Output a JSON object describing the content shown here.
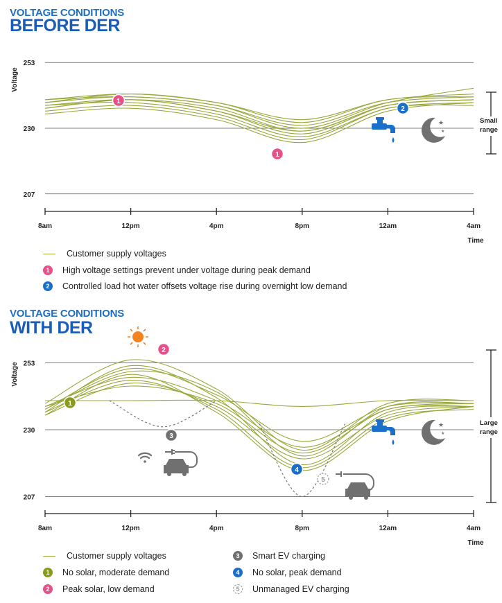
{
  "colors": {
    "curves": "#9aa83a",
    "title": "#1a5cb8",
    "pink": "#e8508a",
    "blue": "#1a6fc8",
    "olive": "#8a9a1c",
    "gray": "#707070",
    "sun": "#f58220"
  },
  "chart1": {
    "title_line1": "VOLTAGE CONDITIONS",
    "title_line2": "BEFORE DER",
    "ylabel": "Voltage",
    "xlabel": "Time",
    "range_label_line1": "Small",
    "range_label_line2": "range",
    "marker_1": "1",
    "marker_2": "2",
    "icons": [
      "tap-icon",
      "moon-stars-icon"
    ]
  },
  "chart2": {
    "title_line1": "VOLTAGE CONDITIONS",
    "title_line2": "WITH DER",
    "ylabel": "Voltage",
    "xlabel": "Time",
    "range_label_line1": "Large",
    "range_label_line2": "range",
    "marker_1": "1",
    "marker_2": "2",
    "marker_3": "3",
    "marker_4": "4",
    "marker_5": "5",
    "icons": [
      "sun-icon",
      "wifi-icon",
      "ev-plug-icon",
      "car-icon",
      "tap-icon",
      "moon-stars-icon"
    ]
  },
  "legend1": {
    "line": "Customer supply voltages",
    "item1": "High voltage settings prevent under voltage during peak demand",
    "item2": "Controlled load hot water offsets voltage rise during overnight low demand"
  },
  "legend2": {
    "line": "Customer supply voltages",
    "item1": "No solar, moderate demand",
    "item2": "Peak solar, low demand",
    "item3": "Smart EV charging",
    "item4": "No solar, peak demand",
    "item5": "Unmanaged EV charging"
  },
  "chart_data": [
    {
      "type": "line",
      "title": "VOLTAGE CONDITIONS BEFORE DER",
      "xlabel": "Time",
      "ylabel": "Voltage",
      "categories": [
        "8am",
        "12pm",
        "4pm",
        "8pm",
        "12am",
        "4am"
      ],
      "yticks": [
        207,
        230,
        253
      ],
      "ylim": [
        205,
        255
      ],
      "grid": "horizontal at ticks",
      "series": [
        {
          "values": [
            239,
            241,
            238,
            231,
            239,
            241
          ]
        },
        {
          "values": [
            240,
            242,
            239,
            233,
            240,
            242
          ]
        },
        {
          "values": [
            237,
            240,
            236,
            229,
            238,
            240
          ]
        },
        {
          "values": [
            238,
            239,
            235,
            227,
            237,
            239
          ]
        },
        {
          "values": [
            236,
            238,
            234,
            226,
            237,
            238
          ]
        },
        {
          "values": [
            239,
            242,
            239,
            232,
            240,
            241
          ]
        },
        {
          "values": [
            237,
            240,
            237,
            229,
            238,
            240
          ]
        },
        {
          "values": [
            235,
            237,
            233,
            225,
            236,
            239
          ]
        },
        {
          "values": [
            240,
            241,
            238,
            230,
            239,
            244
          ]
        },
        {
          "values": [
            238,
            240,
            236,
            228,
            238,
            240
          ]
        }
      ],
      "markers": [
        {
          "label": "1",
          "x": "11am",
          "y": 241
        },
        {
          "label": "1",
          "x": "7pm",
          "y": 224
        },
        {
          "label": "2",
          "x": "1am",
          "y": 238
        }
      ]
    },
    {
      "type": "line",
      "title": "VOLTAGE CONDITIONS WITH DER",
      "xlabel": "Time",
      "ylabel": "Voltage",
      "categories": [
        "8am",
        "12pm",
        "4pm",
        "8pm",
        "12am",
        "4am"
      ],
      "yticks": [
        207,
        230,
        253
      ],
      "ylim": [
        205,
        255
      ],
      "grid": "horizontal at ticks",
      "series": [
        {
          "values": [
            237,
            250,
            243,
            221,
            238,
            239
          ]
        },
        {
          "values": [
            236,
            252,
            241,
            218,
            236,
            238
          ]
        },
        {
          "values": [
            238,
            248,
            240,
            224,
            237,
            239
          ]
        },
        {
          "values": [
            235,
            246,
            238,
            220,
            235,
            238
          ]
        },
        {
          "values": [
            239,
            254,
            244,
            223,
            239,
            240
          ]
        },
        {
          "values": [
            236,
            247,
            237,
            217,
            234,
            237
          ]
        },
        {
          "values": [
            237,
            251,
            242,
            226,
            238,
            239
          ]
        },
        {
          "values": [
            238,
            245,
            239,
            222,
            237,
            238
          ]
        },
        {
          "values": [
            240,
            240,
            240,
            238,
            240,
            240
          ]
        },
        {
          "values": [
            235,
            249,
            236,
            216,
            233,
            238
          ]
        }
      ],
      "dashed_series": [
        {
          "name": "Smart EV charging",
          "x": [
            11,
            13.5,
            16
          ],
          "values": [
            240,
            231,
            240
          ]
        },
        {
          "name": "Unmanaged EV charging",
          "x": [
            18,
            20,
            22
          ],
          "values": [
            232,
            207,
            232
          ]
        }
      ],
      "markers": [
        {
          "label": "1",
          "x": "9am",
          "y": 240
        },
        {
          "label": "2",
          "x": "2pm",
          "y": 255
        },
        {
          "label": "3",
          "x": "2pm",
          "y": 231
        },
        {
          "label": "4",
          "x": "8pm",
          "y": 220
        },
        {
          "label": "5",
          "x": "9pm",
          "y": 216
        }
      ]
    }
  ]
}
